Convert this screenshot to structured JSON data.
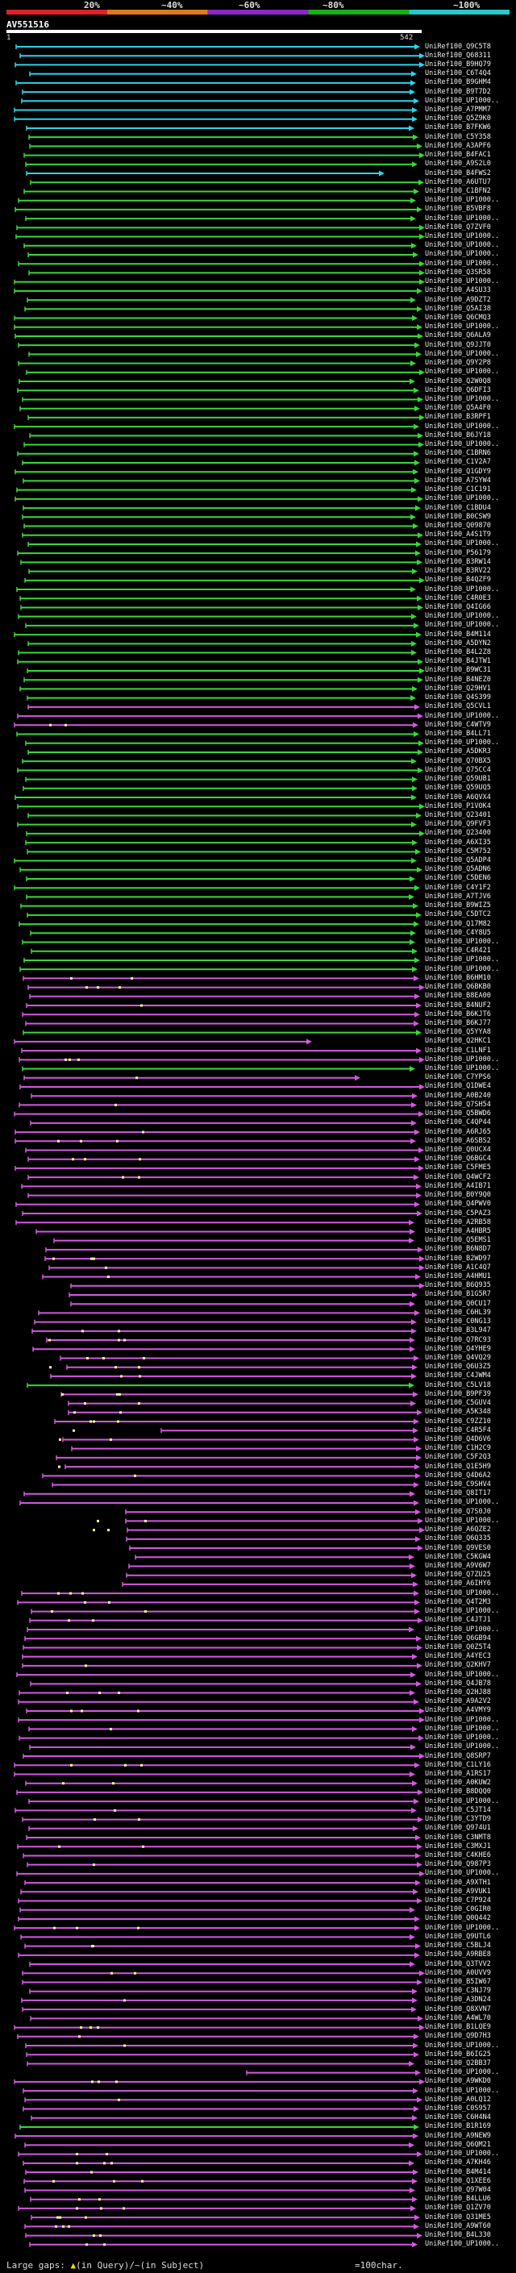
{
  "scale": {
    "labels": [
      "20%",
      "~40%",
      "~60%",
      "~80%",
      "~100%"
    ],
    "colors": [
      "#e0202a",
      "#e07a18",
      "#8a28c8",
      "#18b018",
      "#28c8c8"
    ]
  },
  "query": {
    "title": "AV551516",
    "start": "1",
    "end": "542"
  },
  "legend": {
    "left": "Large gaps: ",
    "query_gap": "(in Query)/",
    "subject_gap": "(in Subject)",
    "bar_label": "=100char."
  },
  "colors": {
    "cyan": "#2cd4e8",
    "green": "#38d838",
    "magenta": "#d458e0",
    "dot": "#f8f8a0"
  },
  "hits": [
    {
      "label": "UniRef100_Q9C5T8",
      "c": "cyan"
    },
    {
      "label": "UniRef100_Q68311",
      "c": "cyan"
    },
    {
      "label": "UniRef100_B9HQ79",
      "c": "cyan"
    },
    {
      "label": "UniRef100_C6T4Q4",
      "c": "cyan"
    },
    {
      "label": "UniRef100_B9GHM4",
      "c": "cyan"
    },
    {
      "label": "UniRef100_B9T7D2",
      "c": "cyan"
    },
    {
      "label": "UniRef100_UP1000..",
      "c": "cyan"
    },
    {
      "label": "UniRef100_A7PMM7",
      "c": "cyan"
    },
    {
      "label": "UniRef100_Q5Z9K0",
      "c": "cyan"
    },
    {
      "label": "UniRef100_B7FKW6",
      "c": "cyan"
    },
    {
      "label": "UniRef100_C5Y358",
      "c": "green"
    },
    {
      "label": "UniRef100_A3APF6",
      "c": "green"
    },
    {
      "label": "UniRef100_B4FAC1",
      "c": "green"
    },
    {
      "label": "UniRef100_A9S2L0",
      "c": "green"
    },
    {
      "label": "UniRef100_B4FWS2",
      "c": "cyan"
    },
    {
      "label": "UniRef100_A6UTU7",
      "c": "green"
    },
    {
      "label": "UniRef100_C1BFN2",
      "c": "green"
    },
    {
      "label": "UniRef100_UP1000..",
      "c": "green"
    },
    {
      "label": "UniRef100_B5VBF8",
      "c": "green"
    },
    {
      "label": "UniRef100_UP1000..",
      "c": "green"
    },
    {
      "label": "UniRef100_Q7ZVF0",
      "c": "green"
    },
    {
      "label": "UniRef100_UP1000..",
      "c": "green"
    },
    {
      "label": "UniRef100_UP1000..",
      "c": "green"
    },
    {
      "label": "UniRef100_UP1000..",
      "c": "green"
    },
    {
      "label": "UniRef100_UP1000..",
      "c": "green"
    },
    {
      "label": "UniRef100_Q3SR58",
      "c": "green"
    },
    {
      "label": "UniRef100_UP1000..",
      "c": "green"
    },
    {
      "label": "UniRef100_A4SU33",
      "c": "green"
    },
    {
      "label": "UniRef100_A9DZT2",
      "c": "green"
    },
    {
      "label": "UniRef100_Q5AI38",
      "c": "green"
    },
    {
      "label": "UniRef100_Q6CMQ3",
      "c": "green"
    },
    {
      "label": "UniRef100_UP1000..",
      "c": "green"
    },
    {
      "label": "UniRef100_Q6ALA9",
      "c": "green"
    },
    {
      "label": "UniRef100_Q9JJT0",
      "c": "green"
    },
    {
      "label": "UniRef100_UP1000..",
      "c": "green"
    },
    {
      "label": "UniRef100_Q9Y2P8",
      "c": "green"
    },
    {
      "label": "UniRef100_UP1000..",
      "c": "green"
    },
    {
      "label": "UniRef100_Q2W0Q8",
      "c": "green"
    },
    {
      "label": "UniRef100_Q6DFI3",
      "c": "green"
    },
    {
      "label": "UniRef100_UP1000..",
      "c": "green"
    },
    {
      "label": "UniRef100_Q5A4F0",
      "c": "green"
    },
    {
      "label": "UniRef100_B3RPF1",
      "c": "green"
    },
    {
      "label": "UniRef100_UP1000..",
      "c": "green"
    },
    {
      "label": "UniRef100_B6JY18",
      "c": "green"
    },
    {
      "label": "UniRef100_UP1000..",
      "c": "green"
    },
    {
      "label": "UniRef100_C1BRN6",
      "c": "green"
    },
    {
      "label": "UniRef100_C1V2A7",
      "c": "green"
    },
    {
      "label": "UniRef100_Q1GDY9",
      "c": "green"
    },
    {
      "label": "UniRef100_A7SYW4",
      "c": "green"
    },
    {
      "label": "UniRef100_C1C191",
      "c": "green"
    },
    {
      "label": "UniRef100_UP1000..",
      "c": "green"
    },
    {
      "label": "UniRef100_C1BDU4",
      "c": "green"
    },
    {
      "label": "UniRef100_B0CSW9",
      "c": "green"
    },
    {
      "label": "UniRef100_Q09870",
      "c": "green"
    },
    {
      "label": "UniRef100_A4S1T9",
      "c": "green"
    },
    {
      "label": "UniRef100_UP1000..",
      "c": "green"
    },
    {
      "label": "UniRef100_P56179",
      "c": "green"
    },
    {
      "label": "UniRef100_B3RW14",
      "c": "green"
    },
    {
      "label": "UniRef100_B3RV22",
      "c": "green"
    },
    {
      "label": "UniRef100_B4QZF9",
      "c": "green"
    },
    {
      "label": "UniRef100_UP1000..",
      "c": "green"
    },
    {
      "label": "UniRef100_C4R0E3",
      "c": "green"
    },
    {
      "label": "UniRef100_Q4IG66",
      "c": "green"
    },
    {
      "label": "UniRef100_UP1000..",
      "c": "green"
    },
    {
      "label": "UniRef100_UP1000..",
      "c": "green"
    },
    {
      "label": "UniRef100_B4M114",
      "c": "green"
    },
    {
      "label": "UniRef100_A5DYN2",
      "c": "green"
    },
    {
      "label": "UniRef100_B4L2Z8",
      "c": "green"
    },
    {
      "label": "UniRef100_B4JTW1",
      "c": "green"
    },
    {
      "label": "UniRef100_B9WC31",
      "c": "green"
    },
    {
      "label": "UniRef100_B4NEZ0",
      "c": "green"
    },
    {
      "label": "UniRef100_Q29HV1",
      "c": "green"
    },
    {
      "label": "UniRef100_Q4S399",
      "c": "green"
    },
    {
      "label": "UniRef100_Q5CVL1",
      "c": "magenta"
    },
    {
      "label": "UniRef100_UP1000..",
      "c": "magenta"
    },
    {
      "label": "UniRef100_C4WTV9",
      "c": "magenta"
    },
    {
      "label": "UniRef100_B4LL71",
      "c": "green"
    },
    {
      "label": "UniRef100_UP1000..",
      "c": "green"
    },
    {
      "label": "UniRef100_A5DKR3",
      "c": "green"
    },
    {
      "label": "UniRef100_Q70BX5",
      "c": "green"
    },
    {
      "label": "UniRef100_Q75CC4",
      "c": "green"
    },
    {
      "label": "UniRef100_Q59UB1",
      "c": "green"
    },
    {
      "label": "UniRef100_Q59UQ5",
      "c": "green"
    },
    {
      "label": "UniRef100_A6QVX4",
      "c": "green"
    },
    {
      "label": "UniRef100_P1VOK4",
      "c": "green"
    },
    {
      "label": "UniRef100_Q23401",
      "c": "green"
    },
    {
      "label": "UniRef100_Q9FVF3",
      "c": "green"
    },
    {
      "label": "UniRef100_Q23400",
      "c": "green"
    },
    {
      "label": "UniRef100_A6XI35",
      "c": "green"
    },
    {
      "label": "UniRef100_C5M752",
      "c": "green"
    },
    {
      "label": "UniRef100_Q5ADP4",
      "c": "green"
    },
    {
      "label": "UniRef100_Q5ADN6",
      "c": "green"
    },
    {
      "label": "UniRef100_C5DEN6",
      "c": "green"
    },
    {
      "label": "UniRef100_C4Y1F2",
      "c": "green"
    },
    {
      "label": "UniRef100_A7TJV6",
      "c": "green"
    },
    {
      "label": "UniRef100_B9WIZ5",
      "c": "green"
    },
    {
      "label": "UniRef100_C5DTC2",
      "c": "green"
    },
    {
      "label": "UniRef100_Q17M82",
      "c": "green"
    },
    {
      "label": "UniRef100_C4Y8U5",
      "c": "green"
    },
    {
      "label": "UniRef100_UP1000..",
      "c": "green"
    },
    {
      "label": "UniRef100_C4R421",
      "c": "green"
    },
    {
      "label": "UniRef100_UP1000..",
      "c": "green"
    },
    {
      "label": "UniRef100_UP1000..",
      "c": "green"
    },
    {
      "label": "UniRef100_B6HM10",
      "c": "magenta"
    },
    {
      "label": "UniRef100_Q6BKB0",
      "c": "magenta"
    },
    {
      "label": "UniRef100_B8EA00",
      "c": "magenta"
    },
    {
      "label": "UniRef100_B4NUF2",
      "c": "magenta"
    },
    {
      "label": "UniRef100_B6KJT6",
      "c": "magenta"
    },
    {
      "label": "UniRef100_B6KJ77",
      "c": "magenta"
    },
    {
      "label": "UniRef100_Q5YYA8",
      "c": "green"
    },
    {
      "label": "UniRef100_Q2HKC1",
      "c": "magenta"
    },
    {
      "label": "UniRef100_C1LNF1",
      "c": "magenta"
    },
    {
      "label": "UniRef100_UP1000..",
      "c": "magenta"
    },
    {
      "label": "UniRef100_UP1000..",
      "c": "green"
    },
    {
      "label": "UniRef100_C7YPS6",
      "c": "magenta"
    },
    {
      "label": "UniRef100_Q1DWE4",
      "c": "magenta"
    },
    {
      "label": "UniRef100_A0B240",
      "c": "magenta"
    },
    {
      "label": "UniRef100_Q7SH54",
      "c": "magenta"
    },
    {
      "label": "UniRef100_Q5BWD6",
      "c": "magenta"
    },
    {
      "label": "UniRef100_C4QP44",
      "c": "magenta"
    },
    {
      "label": "UniRef100_A6RJ65",
      "c": "magenta"
    },
    {
      "label": "UniRef100_A6SBS2",
      "c": "magenta"
    },
    {
      "label": "UniRef100_Q0UCX4",
      "c": "magenta"
    },
    {
      "label": "UniRef100_Q6BGC4",
      "c": "magenta"
    },
    {
      "label": "UniRef100_C5FME5",
      "c": "magenta"
    },
    {
      "label": "UniRef100_Q4WCF2",
      "c": "magenta"
    },
    {
      "label": "UniRef100_A4IB71",
      "c": "magenta"
    },
    {
      "label": "UniRef100_B0Y9Q0",
      "c": "magenta"
    },
    {
      "label": "UniRef100_Q4PWV0",
      "c": "magenta"
    },
    {
      "label": "UniRef100_C5PAZ3",
      "c": "magenta"
    },
    {
      "label": "UniRef100_A2RB58",
      "c": "magenta"
    },
    {
      "label": "UniRef100_A4HBR5",
      "c": "magenta"
    },
    {
      "label": "UniRef100_Q5EMS1",
      "c": "magenta"
    },
    {
      "label": "UniRef100_B6N8D7",
      "c": "magenta"
    },
    {
      "label": "UniRef100_B2WD97",
      "c": "magenta"
    },
    {
      "label": "UniRef100_A1C4Q7",
      "c": "magenta"
    },
    {
      "label": "UniRef100_A4HMU1",
      "c": "magenta"
    },
    {
      "label": "UniRef100_B6Q935",
      "c": "magenta"
    },
    {
      "label": "UniRef100_B1G5R7",
      "c": "magenta"
    },
    {
      "label": "UniRef100_Q0CU17",
      "c": "magenta"
    },
    {
      "label": "UniRef100_C6HL39",
      "c": "magenta"
    },
    {
      "label": "UniRef100_C0NG13",
      "c": "magenta"
    },
    {
      "label": "UniRef100_B3L947",
      "c": "magenta"
    },
    {
      "label": "UniRef100_Q7RC93",
      "c": "magenta"
    },
    {
      "label": "UniRef100_Q4YHE9",
      "c": "magenta"
    },
    {
      "label": "UniRef100_Q4VQ29",
      "c": "magenta"
    },
    {
      "label": "UniRef100_Q6U3Z5",
      "c": "magenta"
    },
    {
      "label": "UniRef100_C4JWM4",
      "c": "magenta"
    },
    {
      "label": "UniRef100_C5LV18",
      "c": "green"
    },
    {
      "label": "UniRef100_B9PF39",
      "c": "magenta"
    },
    {
      "label": "UniRef100_C5GUV4",
      "c": "magenta"
    },
    {
      "label": "UniRef100_A5K348",
      "c": "magenta"
    },
    {
      "label": "UniRef100_C9ZZ10",
      "c": "magenta"
    },
    {
      "label": "UniRef100_C4R5F4",
      "c": "magenta"
    },
    {
      "label": "UniRef100_Q4D6V6",
      "c": "magenta"
    },
    {
      "label": "UniRef100_C1H2C9",
      "c": "magenta"
    },
    {
      "label": "UniRef100_C5F2Q3",
      "c": "magenta"
    },
    {
      "label": "UniRef100_Q1E5H9",
      "c": "magenta"
    },
    {
      "label": "UniRef100_Q4D6A2",
      "c": "magenta"
    },
    {
      "label": "UniRef100_C9SHV4",
      "c": "magenta"
    },
    {
      "label": "UniRef100_Q8IT17",
      "c": "magenta"
    },
    {
      "label": "UniRef100_UP1000..",
      "c": "magenta"
    },
    {
      "label": "UniRef100_Q7S0J0",
      "c": "magenta"
    },
    {
      "label": "UniRef100_UP1000..",
      "c": "magenta"
    },
    {
      "label": "UniRef100_A6QZE2",
      "c": "magenta"
    },
    {
      "label": "UniRef100_Q6Q335",
      "c": "magenta"
    },
    {
      "label": "UniRef100_Q9VES0",
      "c": "magenta"
    },
    {
      "label": "UniRef100_C5KGW4",
      "c": "magenta"
    },
    {
      "label": "UniRef100_A9V6W7",
      "c": "magenta"
    },
    {
      "label": "UniRef100_Q7ZU25",
      "c": "magenta"
    },
    {
      "label": "UniRef100_A6IHY6",
      "c": "magenta"
    },
    {
      "label": "UniRef100_UP1000..",
      "c": "magenta"
    },
    {
      "label": "UniRef100_Q4T2M3",
      "c": "magenta"
    },
    {
      "label": "UniRef100_UP1000..",
      "c": "magenta"
    },
    {
      "label": "UniRef100_C4JTJ1",
      "c": "magenta"
    },
    {
      "label": "UniRef100_UP1000..",
      "c": "magenta"
    },
    {
      "label": "UniRef100_Q6GB94",
      "c": "magenta"
    },
    {
      "label": "UniRef100_Q0Z5T4",
      "c": "magenta"
    },
    {
      "label": "UniRef100_A4YEC3",
      "c": "magenta"
    },
    {
      "label": "UniRef100_Q2KHV7",
      "c": "magenta"
    },
    {
      "label": "UniRef100_UP1000..",
      "c": "magenta"
    },
    {
      "label": "UniRef100_Q4JB78",
      "c": "magenta"
    },
    {
      "label": "UniRef100_Q2HJ88",
      "c": "magenta"
    },
    {
      "label": "UniRef100_A9A2V2",
      "c": "magenta"
    },
    {
      "label": "UniRef100_A4VMY9",
      "c": "magenta"
    },
    {
      "label": "UniRef100_UP1000..",
      "c": "magenta"
    },
    {
      "label": "UniRef100_UP1000..",
      "c": "magenta"
    },
    {
      "label": "UniRef100_UP1000..",
      "c": "magenta"
    },
    {
      "label": "UniRef100_UP1000..",
      "c": "magenta"
    },
    {
      "label": "UniRef100_Q8SRP7",
      "c": "magenta"
    },
    {
      "label": "UniRef100_C1LY16",
      "c": "magenta"
    },
    {
      "label": "UniRef100_A1RS17",
      "c": "magenta"
    },
    {
      "label": "UniRef100_A0KUW2",
      "c": "magenta"
    },
    {
      "label": "UniRef100_B8DQQ0",
      "c": "magenta"
    },
    {
      "label": "UniRef100_UP1000..",
      "c": "magenta"
    },
    {
      "label": "UniRef100_C5JT14",
      "c": "magenta"
    },
    {
      "label": "UniRef100_C3YTD9",
      "c": "magenta"
    },
    {
      "label": "UniRef100_Q974U1",
      "c": "magenta"
    },
    {
      "label": "UniRef100_C3NMT8",
      "c": "magenta"
    },
    {
      "label": "UniRef100_C3MXJ1",
      "c": "magenta"
    },
    {
      "label": "UniRef100_C4KHE6",
      "c": "magenta"
    },
    {
      "label": "UniRef100_Q987P3",
      "c": "magenta"
    },
    {
      "label": "UniRef100_UP1000..",
      "c": "magenta"
    },
    {
      "label": "UniRef100_A9XTH1",
      "c": "magenta"
    },
    {
      "label": "UniRef100_A9VUK1",
      "c": "magenta"
    },
    {
      "label": "UniRef100_C7P924",
      "c": "magenta"
    },
    {
      "label": "UniRef100_C0GIR0",
      "c": "magenta"
    },
    {
      "label": "UniRef100_Q0Q442",
      "c": "magenta"
    },
    {
      "label": "UniRef100_UP1000..",
      "c": "magenta"
    },
    {
      "label": "UniRef100_Q9UTL6",
      "c": "magenta"
    },
    {
      "label": "UniRef100_C5BLJ4",
      "c": "magenta"
    },
    {
      "label": "UniRef100_A9RBE8",
      "c": "magenta"
    },
    {
      "label": "UniRef100_Q3TVV2",
      "c": "magenta"
    },
    {
      "label": "UniRef100_A0UVV9",
      "c": "magenta"
    },
    {
      "label": "UniRef100_B5IW67",
      "c": "magenta"
    },
    {
      "label": "UniRef100_C3NJ79",
      "c": "magenta"
    },
    {
      "label": "UniRef100_A3DN24",
      "c": "magenta"
    },
    {
      "label": "UniRef100_Q8XVN7",
      "c": "magenta"
    },
    {
      "label": "UniRef100_A4WL70",
      "c": "magenta"
    },
    {
      "label": "UniRef100_B1LQE9",
      "c": "magenta"
    },
    {
      "label": "UniRef100_Q9D7H3",
      "c": "magenta"
    },
    {
      "label": "UniRef100_UP1000..",
      "c": "magenta"
    },
    {
      "label": "UniRef100_B6IG25",
      "c": "magenta"
    },
    {
      "label": "UniRef100_Q2BB37",
      "c": "magenta"
    },
    {
      "label": "UniRef100_UP1000..",
      "c": "magenta"
    },
    {
      "label": "UniRef100_A9WKD0",
      "c": "magenta"
    },
    {
      "label": "UniRef100_UP1000..",
      "c": "magenta"
    },
    {
      "label": "UniRef100_A0LQ12",
      "c": "magenta"
    },
    {
      "label": "UniRef100_C0S957",
      "c": "magenta"
    },
    {
      "label": "UniRef100_C6H4N4",
      "c": "magenta"
    },
    {
      "label": "UniRef100_B1R169",
      "c": "green"
    },
    {
      "label": "UniRef100_A9NEW9",
      "c": "magenta"
    },
    {
      "label": "UniRef100_Q6QM21",
      "c": "magenta"
    },
    {
      "label": "UniRef100_UP1000..",
      "c": "magenta"
    },
    {
      "label": "UniRef100_A7KH46",
      "c": "magenta"
    },
    {
      "label": "UniRef100_B4M414",
      "c": "magenta"
    },
    {
      "label": "UniRef100_Q1XEE6",
      "c": "magenta"
    },
    {
      "label": "UniRef100_Q97W04",
      "c": "magenta"
    },
    {
      "label": "UniRef100_B4LLU6",
      "c": "magenta"
    },
    {
      "label": "UniRef100_Q1ZV70",
      "c": "magenta"
    },
    {
      "label": "UniRef100_Q31ME5",
      "c": "magenta"
    },
    {
      "label": "UniRef100_A9WT60",
      "c": "magenta"
    },
    {
      "label": "UniRef100_B4L330",
      "c": "magenta"
    },
    {
      "label": "UniRef100_UP1000..",
      "c": "magenta"
    }
  ]
}
